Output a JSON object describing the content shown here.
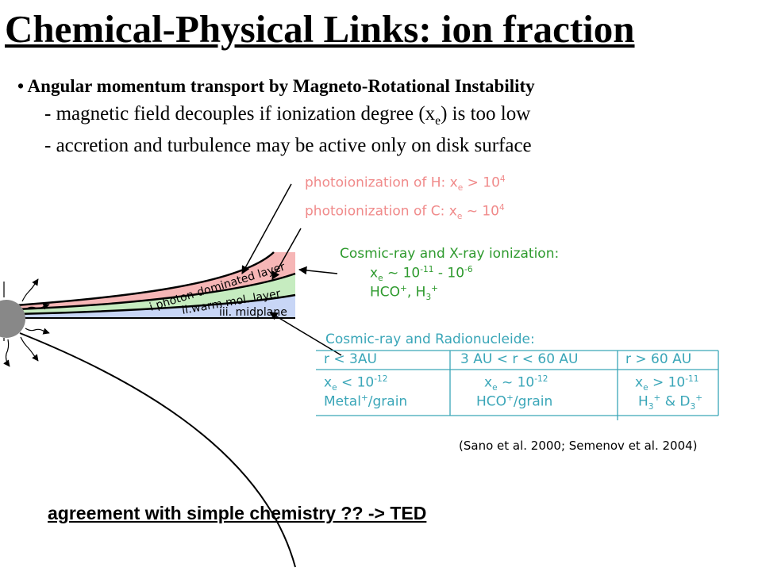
{
  "title": "Chemical-Physical Links: ion fraction",
  "bullet": "Angular momentum transport by Magneto-Rotational Instability",
  "sublines": [
    [
      {
        "text": "- magnetic field decouples if ionization degree (x"
      },
      {
        "sub": "e"
      },
      {
        "text": ") is too low"
      }
    ],
    [
      {
        "text": "- accretion and turbulence may be active only on disk surface"
      }
    ]
  ],
  "annotations": {
    "photo_h": [
      {
        "text": "photoionization of H: x"
      },
      {
        "sub": "e"
      },
      {
        "text": " > 10"
      },
      {
        "sup": "4"
      }
    ],
    "photo_c": [
      {
        "text": "photoionization of C: x"
      },
      {
        "sub": "e"
      },
      {
        "text": " ~ 10"
      },
      {
        "sup": "4"
      }
    ],
    "cosmic_x": {
      "title": "Cosmic-ray and X-ray ionization:",
      "lines": [
        [
          {
            "text": "x"
          },
          {
            "sub": "e"
          },
          {
            "text": " ~ 10"
          },
          {
            "sup": "-11"
          },
          {
            "text": " - 10"
          },
          {
            "sup": "-6"
          }
        ],
        [
          {
            "text": "HCO"
          },
          {
            "sup": "+"
          },
          {
            "text": ", H"
          },
          {
            "sub": "3"
          },
          {
            "sup": "+"
          }
        ]
      ]
    },
    "radionuclide": {
      "title": "Cosmic-ray and Radionucleide:",
      "header": [
        "r < 3AU",
        "3 AU < r < 60 AU",
        "r > 60 AU"
      ],
      "rows": [
        [
          [
            {
              "text": "x"
            },
            {
              "sub": "e"
            },
            {
              "text": " < 10"
            },
            {
              "sup": "-12"
            }
          ],
          [
            {
              "text": "x"
            },
            {
              "sub": "e"
            },
            {
              "text": " ~ 10"
            },
            {
              "sup": "-12"
            }
          ],
          [
            {
              "text": "x"
            },
            {
              "sub": "e"
            },
            {
              "text": " > 10"
            },
            {
              "sup": "-11"
            }
          ]
        ],
        [
          [
            {
              "text": "Metal"
            },
            {
              "sup": "+"
            },
            {
              "text": "/grain"
            }
          ],
          [
            {
              "text": "HCO"
            },
            {
              "sup": "+"
            },
            {
              "text": "/grain"
            }
          ],
          [
            {
              "text": "H"
            },
            {
              "sub": "3"
            },
            {
              "sup": "+"
            },
            {
              "text": " & D"
            },
            {
              "sub": "3"
            },
            {
              "sup": "+"
            }
          ]
        ]
      ]
    }
  },
  "layers": [
    "i.photon-dominated layer",
    "ii.warm mol. layer",
    "iii. midplane"
  ],
  "citation": "(Sano et al. 2000; Semenov et al. 2004)",
  "footer": "agreement with simple chemistry ?? -> TED"
}
